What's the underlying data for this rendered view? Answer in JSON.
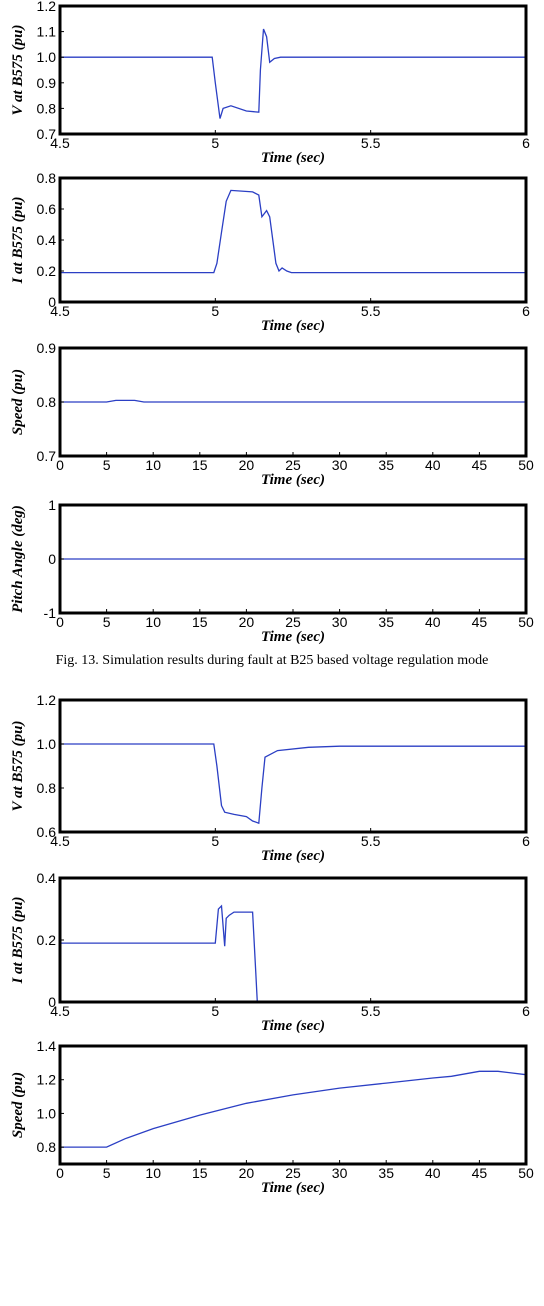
{
  "caption": "Fig. 13. Simulation results during fault at B25 based voltage regulation mode",
  "trace_color": "#2b3fc4",
  "chart_data": [
    {
      "type": "line",
      "ylabel": "V at B575 (pu)",
      "xlabel": "Time (sec)",
      "xlim": [
        4.5,
        6
      ],
      "ylim": [
        0.7,
        1.2
      ],
      "xticks": [
        "4.5",
        "5",
        "5.5",
        "6"
      ],
      "yticks": [
        "0.7",
        "0.8",
        "0.9",
        "1.0",
        "1.1",
        "1.2"
      ],
      "x": [
        4.5,
        4.99,
        5.0,
        5.015,
        5.025,
        5.05,
        5.1,
        5.14,
        5.145,
        5.155,
        5.165,
        5.175,
        5.19,
        5.21,
        5.25,
        6.0
      ],
      "y": [
        1.0,
        1.0,
        0.9,
        0.76,
        0.8,
        0.81,
        0.79,
        0.785,
        0.95,
        1.11,
        1.08,
        0.98,
        0.995,
        1.0,
        1.0,
        1.0
      ]
    },
    {
      "type": "line",
      "ylabel": "I at B575 (pu)",
      "xlabel": "Time (sec)",
      "xlim": [
        4.5,
        6
      ],
      "ylim": [
        0,
        0.8
      ],
      "xticks": [
        "4.5",
        "5",
        "5.5",
        "6"
      ],
      "yticks": [
        "0",
        "0.2",
        "0.4",
        "0.6",
        "0.8"
      ],
      "x": [
        4.5,
        4.995,
        5.005,
        5.02,
        5.035,
        5.05,
        5.12,
        5.14,
        5.15,
        5.165,
        5.175,
        5.185,
        5.195,
        5.205,
        5.215,
        5.23,
        5.245,
        5.26,
        6.0
      ],
      "y": [
        0.19,
        0.19,
        0.25,
        0.45,
        0.65,
        0.72,
        0.71,
        0.69,
        0.55,
        0.59,
        0.55,
        0.4,
        0.25,
        0.2,
        0.22,
        0.2,
        0.19,
        0.19,
        0.19
      ],
      "note": ""
    },
    {
      "type": "line",
      "ylabel": "Speed (pu)",
      "xlabel": "Time (sec)",
      "xlim": [
        0,
        50
      ],
      "ylim": [
        0.7,
        0.9
      ],
      "xticks": [
        "0",
        "5",
        "10",
        "15",
        "20",
        "25",
        "30",
        "35",
        "40",
        "45",
        "50"
      ],
      "yticks": [
        "0.7",
        "0.8",
        "0.9"
      ],
      "x": [
        0,
        5,
        6,
        8,
        9,
        50
      ],
      "y": [
        0.8,
        0.8,
        0.803,
        0.803,
        0.8,
        0.8
      ]
    },
    {
      "type": "line",
      "ylabel": "Pitch Angle (deg)",
      "xlabel": "Time (sec)",
      "xlim": [
        0,
        50
      ],
      "ylim": [
        -1,
        1
      ],
      "xticks": [
        "0",
        "5",
        "10",
        "15",
        "20",
        "25",
        "30",
        "35",
        "40",
        "45",
        "50"
      ],
      "yticks": [
        "-1",
        "0",
        "1"
      ],
      "x": [
        0,
        50
      ],
      "y": [
        0,
        0
      ]
    },
    {
      "type": "line",
      "ylabel": "V at B575 (pu)",
      "xlabel": "Time (sec)",
      "xlim": [
        4.5,
        6
      ],
      "ylim": [
        0.6,
        1.2
      ],
      "xticks": [
        "4.5",
        "5",
        "5.5",
        "6"
      ],
      "yticks": [
        "0.6",
        "0.8",
        "1.0",
        "1.2"
      ],
      "x": [
        4.5,
        4.995,
        5.005,
        5.02,
        5.03,
        5.06,
        5.1,
        5.12,
        5.14,
        5.15,
        5.16,
        5.2,
        5.3,
        5.4,
        5.5,
        6.0
      ],
      "y": [
        1.0,
        1.0,
        0.9,
        0.72,
        0.69,
        0.68,
        0.67,
        0.65,
        0.64,
        0.8,
        0.94,
        0.97,
        0.985,
        0.99,
        0.99,
        0.99
      ]
    },
    {
      "type": "line",
      "ylabel": "I at B575 (pu)",
      "xlabel": "Time (sec)",
      "xlim": [
        4.5,
        6
      ],
      "ylim": [
        0,
        0.4
      ],
      "xticks": [
        "4.5",
        "5",
        "5.5",
        "6"
      ],
      "yticks": [
        "0",
        "0.2",
        "0.4"
      ],
      "x": [
        4.5,
        5.0,
        5.01,
        5.02,
        5.03,
        5.035,
        5.045,
        5.06,
        5.1,
        5.12,
        5.13,
        5.135,
        6.0
      ],
      "y": [
        0.19,
        0.19,
        0.3,
        0.31,
        0.18,
        0.27,
        0.28,
        0.29,
        0.29,
        0.29,
        0.1,
        0.0,
        0.0
      ]
    },
    {
      "type": "line",
      "ylabel": "Speed (pu)",
      "xlabel": "Time (sec)",
      "xlim": [
        0,
        50
      ],
      "ylim": [
        0.7,
        1.4
      ],
      "xticks": [
        "0",
        "5",
        "10",
        "15",
        "20",
        "25",
        "30",
        "35",
        "40",
        "45",
        "50"
      ],
      "yticks": [
        "0.8",
        "1.0",
        "1.2",
        "1.4"
      ],
      "x": [
        0,
        5,
        7,
        10,
        15,
        20,
        25,
        30,
        35,
        40,
        42,
        45,
        47,
        50
      ],
      "y": [
        0.8,
        0.8,
        0.85,
        0.91,
        0.99,
        1.06,
        1.11,
        1.15,
        1.18,
        1.21,
        1.22,
        1.25,
        1.25,
        1.23
      ]
    }
  ]
}
